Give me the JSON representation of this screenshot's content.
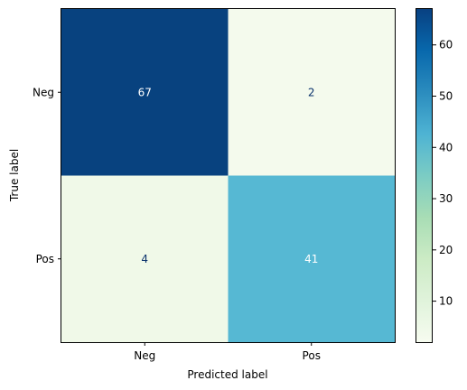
{
  "chart_data": {
    "type": "heatmap",
    "title": "",
    "xlabel": "Predicted label",
    "ylabel": "True label",
    "x_categories": [
      "Neg",
      "Pos"
    ],
    "y_categories": [
      "Neg",
      "Pos"
    ],
    "values": [
      [
        67,
        2
      ],
      [
        4,
        41
      ]
    ],
    "colormap": "GnBu",
    "colorbar": {
      "min": 2,
      "max": 67,
      "ticks": [
        10,
        20,
        30,
        40,
        50,
        60
      ]
    },
    "grid": false
  },
  "colors": {
    "cell_neg_neg": "#08427f",
    "cell_neg_pos": "#f4faed",
    "cell_pos_neg": "#f0f9e8",
    "cell_pos_pos": "#56b8d3",
    "text_on_dark": "#ffffff",
    "text_on_light": "#08306b"
  }
}
